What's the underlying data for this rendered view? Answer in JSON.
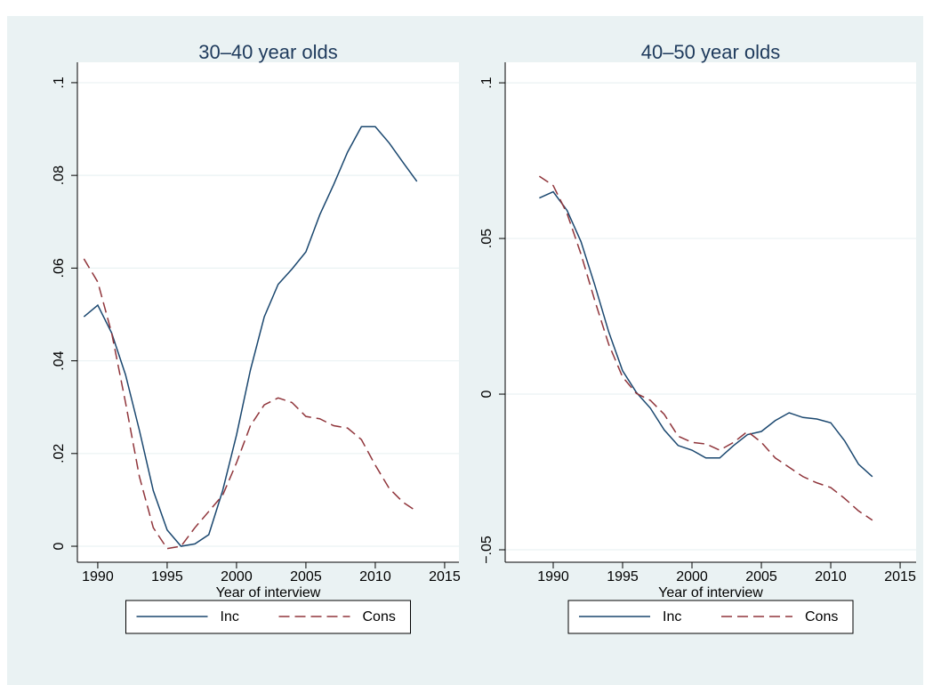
{
  "chart_data": [
    {
      "type": "line",
      "title": "30–40 year olds",
      "xlabel": "Year of interview",
      "x": [
        1989,
        1990,
        1991,
        1992,
        1993,
        1994,
        1995,
        1996,
        1997,
        1998,
        1999,
        2000,
        2001,
        2002,
        2003,
        2004,
        2005,
        2006,
        2007,
        2008,
        2009,
        2010,
        2011,
        2012,
        2013
      ],
      "series": [
        {
          "name": "Inc",
          "color": "#1a476f",
          "dash": "solid",
          "values": [
            0.0495,
            0.052,
            0.046,
            0.037,
            0.025,
            0.012,
            0.0035,
            0,
            0.0005,
            0.0025,
            0.012,
            0.024,
            0.038,
            0.0495,
            0.0565,
            0.0598,
            0.0635,
            0.0715,
            0.078,
            0.085,
            0.0905,
            0.0905,
            0.087,
            0.0828,
            0.0787
          ]
        },
        {
          "name": "Cons",
          "color": "#90353b",
          "dash": "dashed",
          "values": [
            0.062,
            0.057,
            0.046,
            0.031,
            0.015,
            0.004,
            -0.0005,
            0,
            0.004,
            0.0075,
            0.011,
            0.018,
            0.026,
            0.0305,
            0.032,
            0.031,
            0.028,
            0.0275,
            0.026,
            0.0255,
            0.023,
            0.0175,
            0.0125,
            0.0095,
            0.0075
          ]
        }
      ],
      "xlim": [
        1988.53,
        2016.03
      ],
      "ylim": [
        -0.00345,
        0.1044
      ],
      "xticks": [
        1990,
        1995,
        2000,
        2005,
        2010,
        2015
      ],
      "yticks": [
        0,
        {
          "value": 0.02,
          "label": ".02"
        },
        {
          "value": 0.04,
          "label": ".04"
        },
        {
          "value": 0.06,
          "label": ".06"
        },
        {
          "value": 0.08,
          "label": ".08"
        },
        {
          "value": 0.1,
          "label": ".1"
        }
      ],
      "grid": true,
      "legend": "bottom"
    },
    {
      "type": "line",
      "title": "40–50 year olds",
      "xlabel": "Year of interview",
      "x": [
        1989,
        1990,
        1991,
        1992,
        1993,
        1994,
        1995,
        1996,
        1997,
        1998,
        1999,
        2000,
        2001,
        2002,
        2003,
        2004,
        2005,
        2006,
        2007,
        2008,
        2009,
        2010,
        2011,
        2012,
        2013
      ],
      "series": [
        {
          "name": "Inc",
          "color": "#1a476f",
          "dash": "solid",
          "values": [
            0.063,
            0.065,
            0.059,
            0.049,
            0.035,
            0.02,
            0.0075,
            0.0005,
            -0.0045,
            -0.0115,
            -0.0165,
            -0.018,
            -0.0205,
            -0.0205,
            -0.0165,
            -0.013,
            -0.012,
            -0.0085,
            -0.006,
            -0.0075,
            -0.008,
            -0.0092,
            -0.015,
            -0.0225,
            -0.0265
          ]
        },
        {
          "name": "Cons",
          "color": "#90353b",
          "dash": "dashed",
          "values": [
            0.07,
            0.067,
            0.058,
            0.045,
            0.03,
            0.016,
            0.0055,
            0.0002,
            -0.002,
            -0.0065,
            -0.0135,
            -0.0155,
            -0.016,
            -0.018,
            -0.0155,
            -0.012,
            -0.0155,
            -0.0205,
            -0.0235,
            -0.0265,
            -0.0285,
            -0.03,
            -0.0335,
            -0.0375,
            -0.0405
          ]
        }
      ],
      "xlim": [
        1986.54,
        2016.15
      ],
      "ylim": [
        -0.054,
        0.1066
      ],
      "xticks": [
        1990,
        1995,
        2000,
        2005,
        2010,
        2015
      ],
      "yticks": [
        {
          "value": -0.05,
          "label": "−.05"
        },
        0,
        {
          "value": 0.05,
          "label": ".05"
        },
        {
          "value": 0.1,
          "label": ".1"
        }
      ],
      "grid": true,
      "legend": "bottom"
    }
  ]
}
